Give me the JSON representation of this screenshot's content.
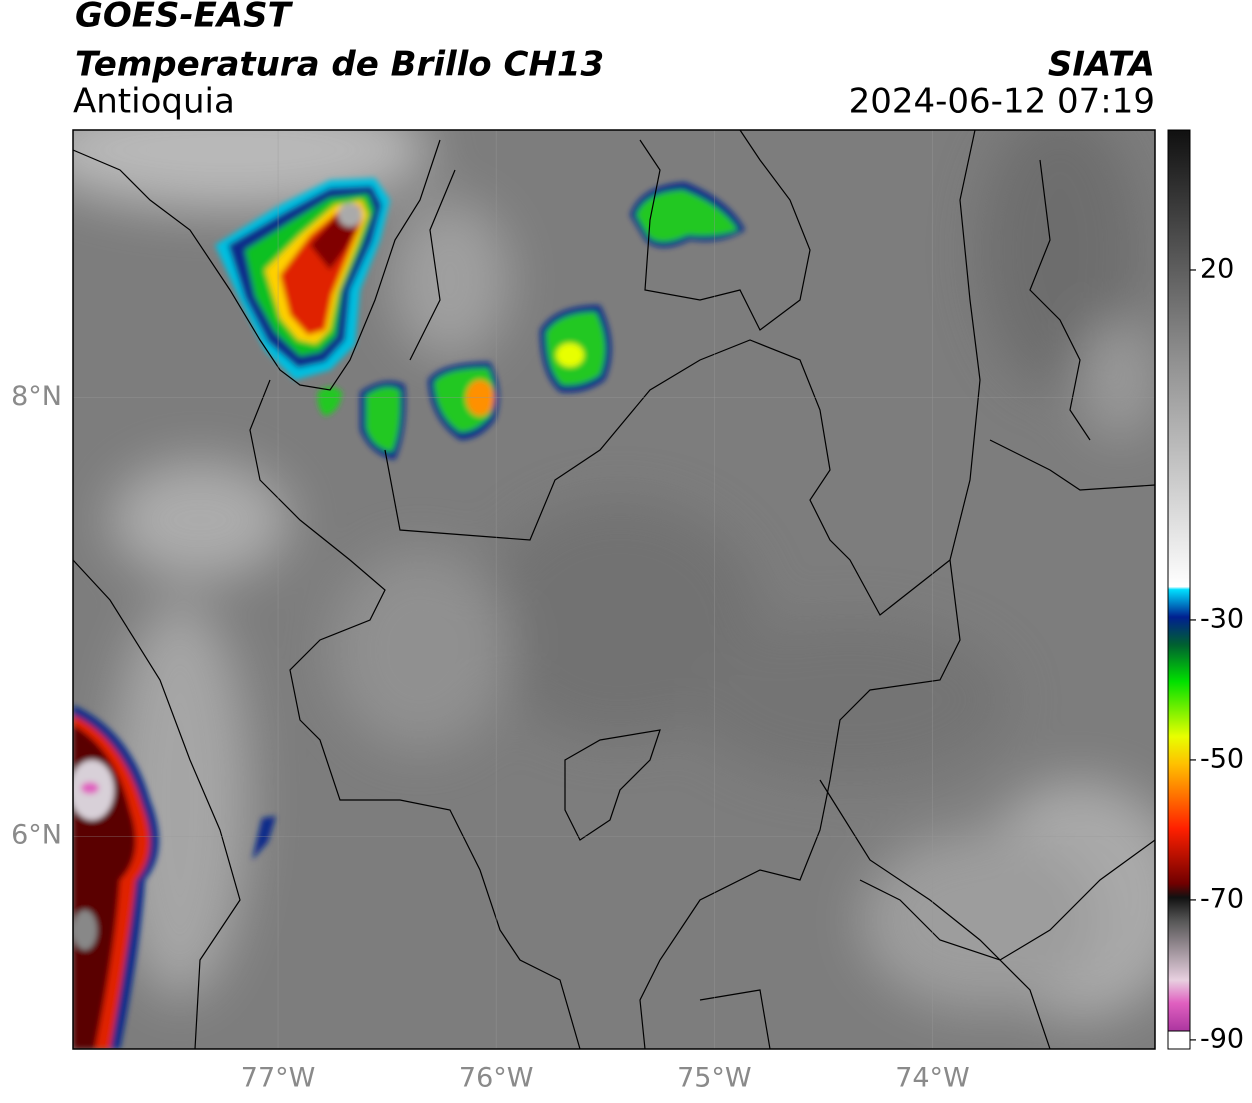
{
  "header": {
    "title": "GOES-EAST",
    "subtitle": "Temperatura de Brillo CH13",
    "region": "Antioquia",
    "source": "SIATA",
    "datetime": "2024-06-12 07:19"
  },
  "map": {
    "xlim": [
      -77.94,
      -72.98
    ],
    "ylim": [
      5.03,
      9.22
    ],
    "xticks": [
      {
        "value": -77,
        "label": "77°W"
      },
      {
        "value": -76,
        "label": "76°W"
      },
      {
        "value": -75,
        "label": "75°W"
      },
      {
        "value": -74,
        "label": "74°W"
      }
    ],
    "yticks": [
      {
        "value": 8,
        "label": "8°N"
      },
      {
        "value": 6,
        "label": "6°N"
      }
    ],
    "grid": true
  },
  "colorbar": {
    "lim": [
      -91.3,
      40
    ],
    "ticks": [
      20,
      -30,
      -50,
      -70,
      -90
    ]
  }
}
